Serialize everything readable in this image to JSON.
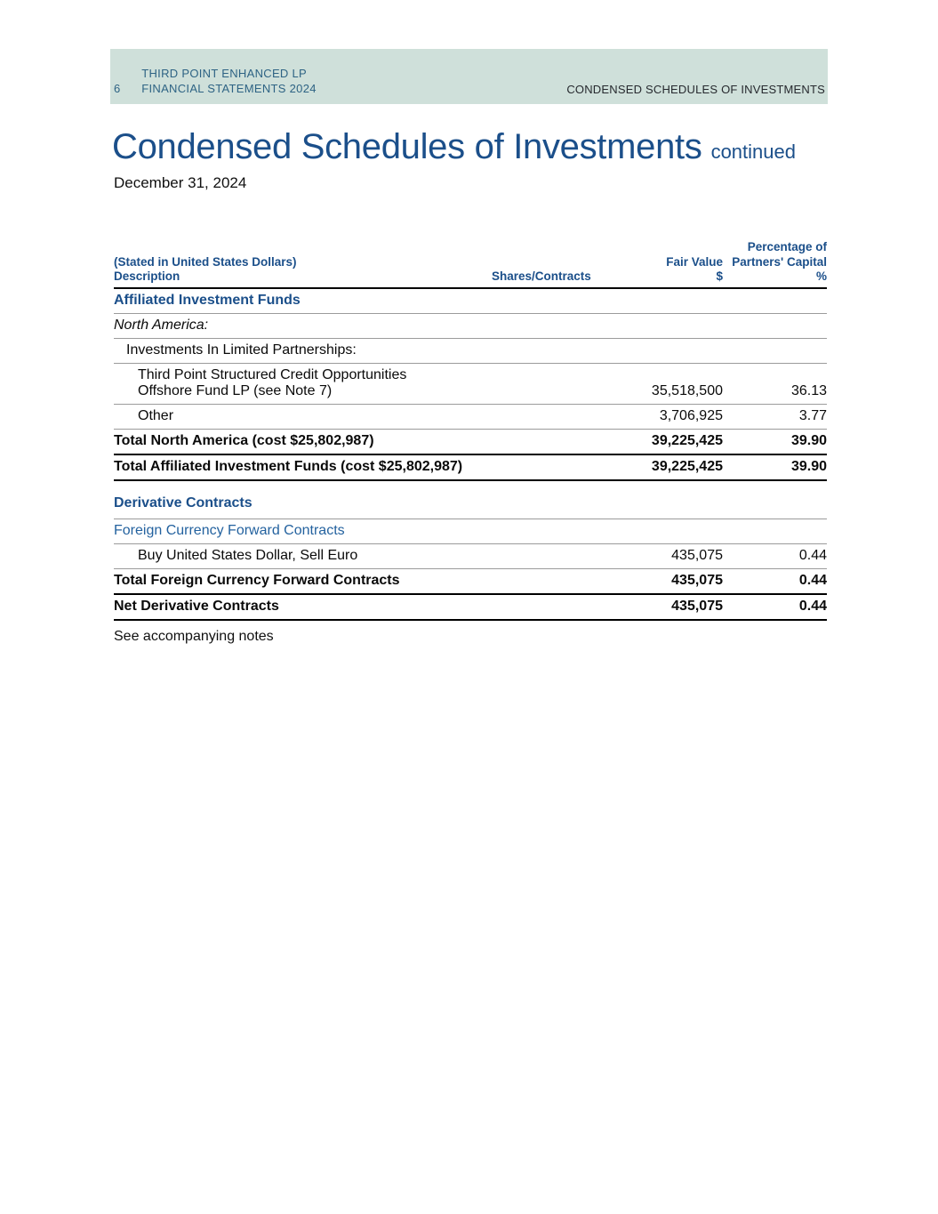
{
  "colors": {
    "banner_background": "#cfe0da",
    "brand_blue": "#1b4f8a",
    "banner_text_blue": "#2e6384",
    "subsection_blue": "#24629f",
    "rule_gray": "#9b9b9b",
    "rule_black": "#000000"
  },
  "banner": {
    "page_number": "6",
    "org_line1": "THIRD POINT ENHANCED LP",
    "org_line2": "FINANCIAL STATEMENTS 2024",
    "section_label": "CONDENSED SCHEDULES OF INVESTMENTS"
  },
  "title": {
    "main": "Condensed Schedules of Investments",
    "suffix": "continued",
    "date": "December 31, 2024"
  },
  "table": {
    "header": {
      "stated_note": "(Stated in United States Dollars)",
      "description": "Description",
      "shares": "Shares/Contracts",
      "fair_value_line1": "Fair Value",
      "fair_value_line2": "$",
      "pct_line1": "Percentage of",
      "pct_line2": "Partners' Capital",
      "pct_line3": "%"
    },
    "rows": [
      {
        "label": "Affiliated Investment Funds",
        "fair_value": "",
        "pct": ""
      },
      {
        "label": "North America:",
        "fair_value": "",
        "pct": ""
      },
      {
        "label": "Investments In Limited Partnerships:",
        "fair_value": "",
        "pct": ""
      },
      {
        "label_line1": "Third Point Structured Credit Opportunities",
        "label_line2": "Offshore Fund LP (see Note 7)",
        "fair_value": "35,518,500",
        "pct": "36.13"
      },
      {
        "label": "Other",
        "fair_value": "3,706,925",
        "pct": "3.77"
      },
      {
        "label": "Total North America (cost $25,802,987)",
        "fair_value": "39,225,425",
        "pct": "39.90"
      },
      {
        "label": "Total Affiliated Investment Funds (cost $25,802,987)",
        "fair_value": "39,225,425",
        "pct": "39.90"
      },
      {
        "label": "Derivative Contracts",
        "fair_value": "",
        "pct": ""
      },
      {
        "label": "Foreign Currency Forward Contracts",
        "fair_value": "",
        "pct": ""
      },
      {
        "label": "Buy United States Dollar, Sell Euro",
        "fair_value": "435,075",
        "pct": "0.44"
      },
      {
        "label": "Total Foreign Currency Forward Contracts",
        "fair_value": "435,075",
        "pct": "0.44"
      },
      {
        "label": "Net Derivative Contracts",
        "fair_value": "435,075",
        "pct": "0.44"
      }
    ],
    "footnote": "See accompanying notes"
  }
}
